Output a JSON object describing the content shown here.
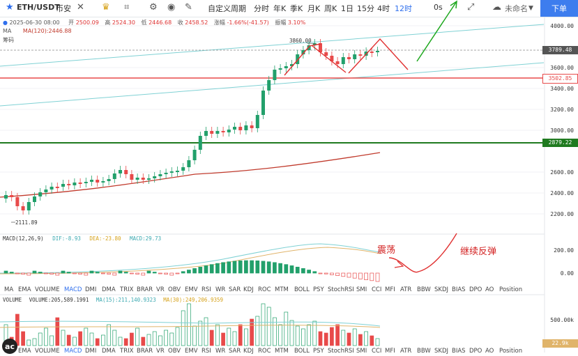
{
  "toolbar": {
    "symbol": "ETH/USDT",
    "exchange": "币安",
    "periods": [
      "自定义周期",
      "分时",
      "年K",
      "季K",
      "月K",
      "周K",
      "1日",
      "15分",
      "4时",
      "12时"
    ],
    "active_period": "12时",
    "timer": "0s",
    "unnamed": "未命名",
    "buy_label": "下单",
    "icons": [
      "star-icon",
      "crown-icon",
      "indicator-icon",
      "settings-icon",
      "camera-icon",
      "pen-icon",
      "undo-icon",
      "redo-icon",
      "fullscreen-icon",
      "cloud-icon"
    ]
  },
  "info": {
    "date": "2025-06-30 08:00",
    "open_label": "开",
    "open": "2500.09",
    "high_label": "高",
    "high": "2524.30",
    "low_label": "低",
    "low": "2446.68",
    "close_label": "收",
    "close": "2458.52",
    "change_label": "涨幅",
    "change": "-1.66%(-41.57)",
    "amp_label": "振幅",
    "amp": "3.10%",
    "ma_label": "MA",
    "ma120": "MA(120):2446.88",
    "chip": "筹码"
  },
  "price_axis": [
    "4000.00",
    "3600.00",
    "3400.00",
    "3200.00",
    "3000.00",
    "2600.00",
    "2400.00",
    "2200.00"
  ],
  "price_tags": [
    {
      "value": "3789.48",
      "color": "#555555"
    },
    {
      "value": "3502.85",
      "color": "#e84a4a"
    },
    {
      "value": "2879.22",
      "color": "#1f7a1f"
    }
  ],
  "high_marker": "3860.00",
  "low_marker": "2111.89",
  "macd": {
    "label": "MACD(12,26,9)",
    "dif": "DIF:-8.93",
    "dea": "DEA:-23.80",
    "macd": "MACD:29.73",
    "axis": [
      "200.00",
      "0.00"
    ]
  },
  "annotations": {
    "oscillation": "震荡",
    "rebound": "继续反弹"
  },
  "indicators": [
    "MA",
    "EMA",
    "VOLUME",
    "MACD",
    "DMI",
    "DMA",
    "TRIX",
    "BRAR",
    "VR",
    "OBV",
    "EMV",
    "RSI",
    "WR",
    "SAR",
    "KDJ",
    "ROC",
    "MTM",
    "BOLL",
    "PSY",
    "StochRSI",
    "SMI",
    "CCI",
    "MFI",
    "ATR",
    "BBW",
    "SKDJ",
    "BIAS",
    "DPO",
    "AO",
    "Position"
  ],
  "selected_indicators": [
    "MACD"
  ],
  "volume": {
    "label": "VOLUME",
    "value": "VOLUME:205,589.1991",
    "ma15": "MA(15):211,140.9323",
    "ma30": "MA(30):249,206.9359",
    "axis": "500.00k",
    "tag": "22.9k"
  },
  "chart_data": {
    "type": "candlestick",
    "note_levels": {
      "resistance_green": 2879.22,
      "support_red": 3502.85
    },
    "ylim": [
      2100,
      4050
    ]
  }
}
